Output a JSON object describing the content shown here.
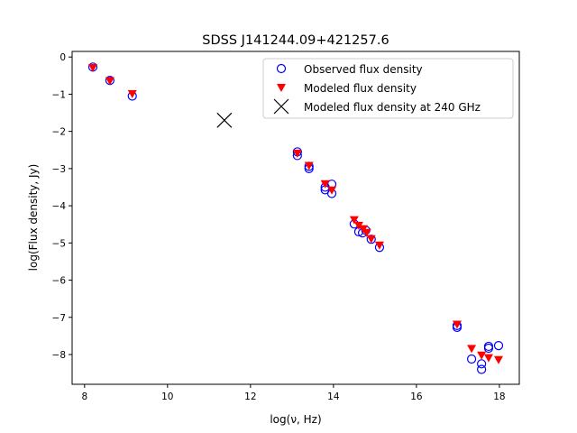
{
  "chart_data": {
    "type": "scatter",
    "title": "SDSS J141244.09+421257.6",
    "xlabel": "log(ν, Hz)",
    "ylabel": "log(Flux density, Jy)",
    "xlim": [
      7.7,
      18.48
    ],
    "ylim": [
      -8.8,
      0.15
    ],
    "xticks": [
      8,
      10,
      12,
      14,
      16,
      18
    ],
    "yticks": [
      0,
      -1,
      -2,
      -3,
      -4,
      -5,
      -6,
      -7,
      -8
    ],
    "legend_position": "top-right",
    "grid": false,
    "series": [
      {
        "name": "Observed flux density",
        "marker": "open-circle",
        "color": "#0000ff",
        "points": [
          [
            8.2,
            -0.27
          ],
          [
            8.61,
            -0.63
          ],
          [
            9.15,
            -1.05
          ],
          [
            13.13,
            -2.55
          ],
          [
            13.13,
            -2.65
          ],
          [
            13.41,
            -2.94
          ],
          [
            13.41,
            -3.0
          ],
          [
            13.8,
            -3.5
          ],
          [
            13.8,
            -3.57
          ],
          [
            13.96,
            -3.42
          ],
          [
            13.96,
            -3.67
          ],
          [
            14.5,
            -4.49
          ],
          [
            14.61,
            -4.7
          ],
          [
            14.7,
            -4.73
          ],
          [
            14.78,
            -4.66
          ],
          [
            14.91,
            -4.9
          ],
          [
            15.11,
            -5.12
          ],
          [
            16.98,
            -7.22
          ],
          [
            16.98,
            -7.27
          ],
          [
            17.33,
            -8.12
          ],
          [
            17.57,
            -8.25
          ],
          [
            17.57,
            -8.4
          ],
          [
            17.74,
            -7.78
          ],
          [
            17.74,
            -7.83
          ],
          [
            17.98,
            -7.76
          ]
        ]
      },
      {
        "name": "Modeled flux density",
        "marker": "triangle-down",
        "color": "#ff0000",
        "points": [
          [
            8.2,
            -0.3
          ],
          [
            8.61,
            -0.65
          ],
          [
            9.15,
            -1.0
          ],
          [
            13.13,
            -2.6
          ],
          [
            13.41,
            -2.93
          ],
          [
            13.8,
            -3.42
          ],
          [
            13.96,
            -3.59
          ],
          [
            14.5,
            -4.39
          ],
          [
            14.61,
            -4.54
          ],
          [
            14.72,
            -4.63
          ],
          [
            14.8,
            -4.73
          ],
          [
            14.91,
            -4.9
          ],
          [
            15.11,
            -5.07
          ],
          [
            16.98,
            -7.2
          ],
          [
            17.33,
            -7.85
          ],
          [
            17.57,
            -8.03
          ],
          [
            17.74,
            -8.1
          ],
          [
            17.98,
            -8.15
          ]
        ]
      },
      {
        "name": "Modeled flux density at 240 GHz",
        "marker": "x",
        "color": "#000000",
        "points": [
          [
            11.37,
            -1.7
          ]
        ]
      }
    ]
  }
}
